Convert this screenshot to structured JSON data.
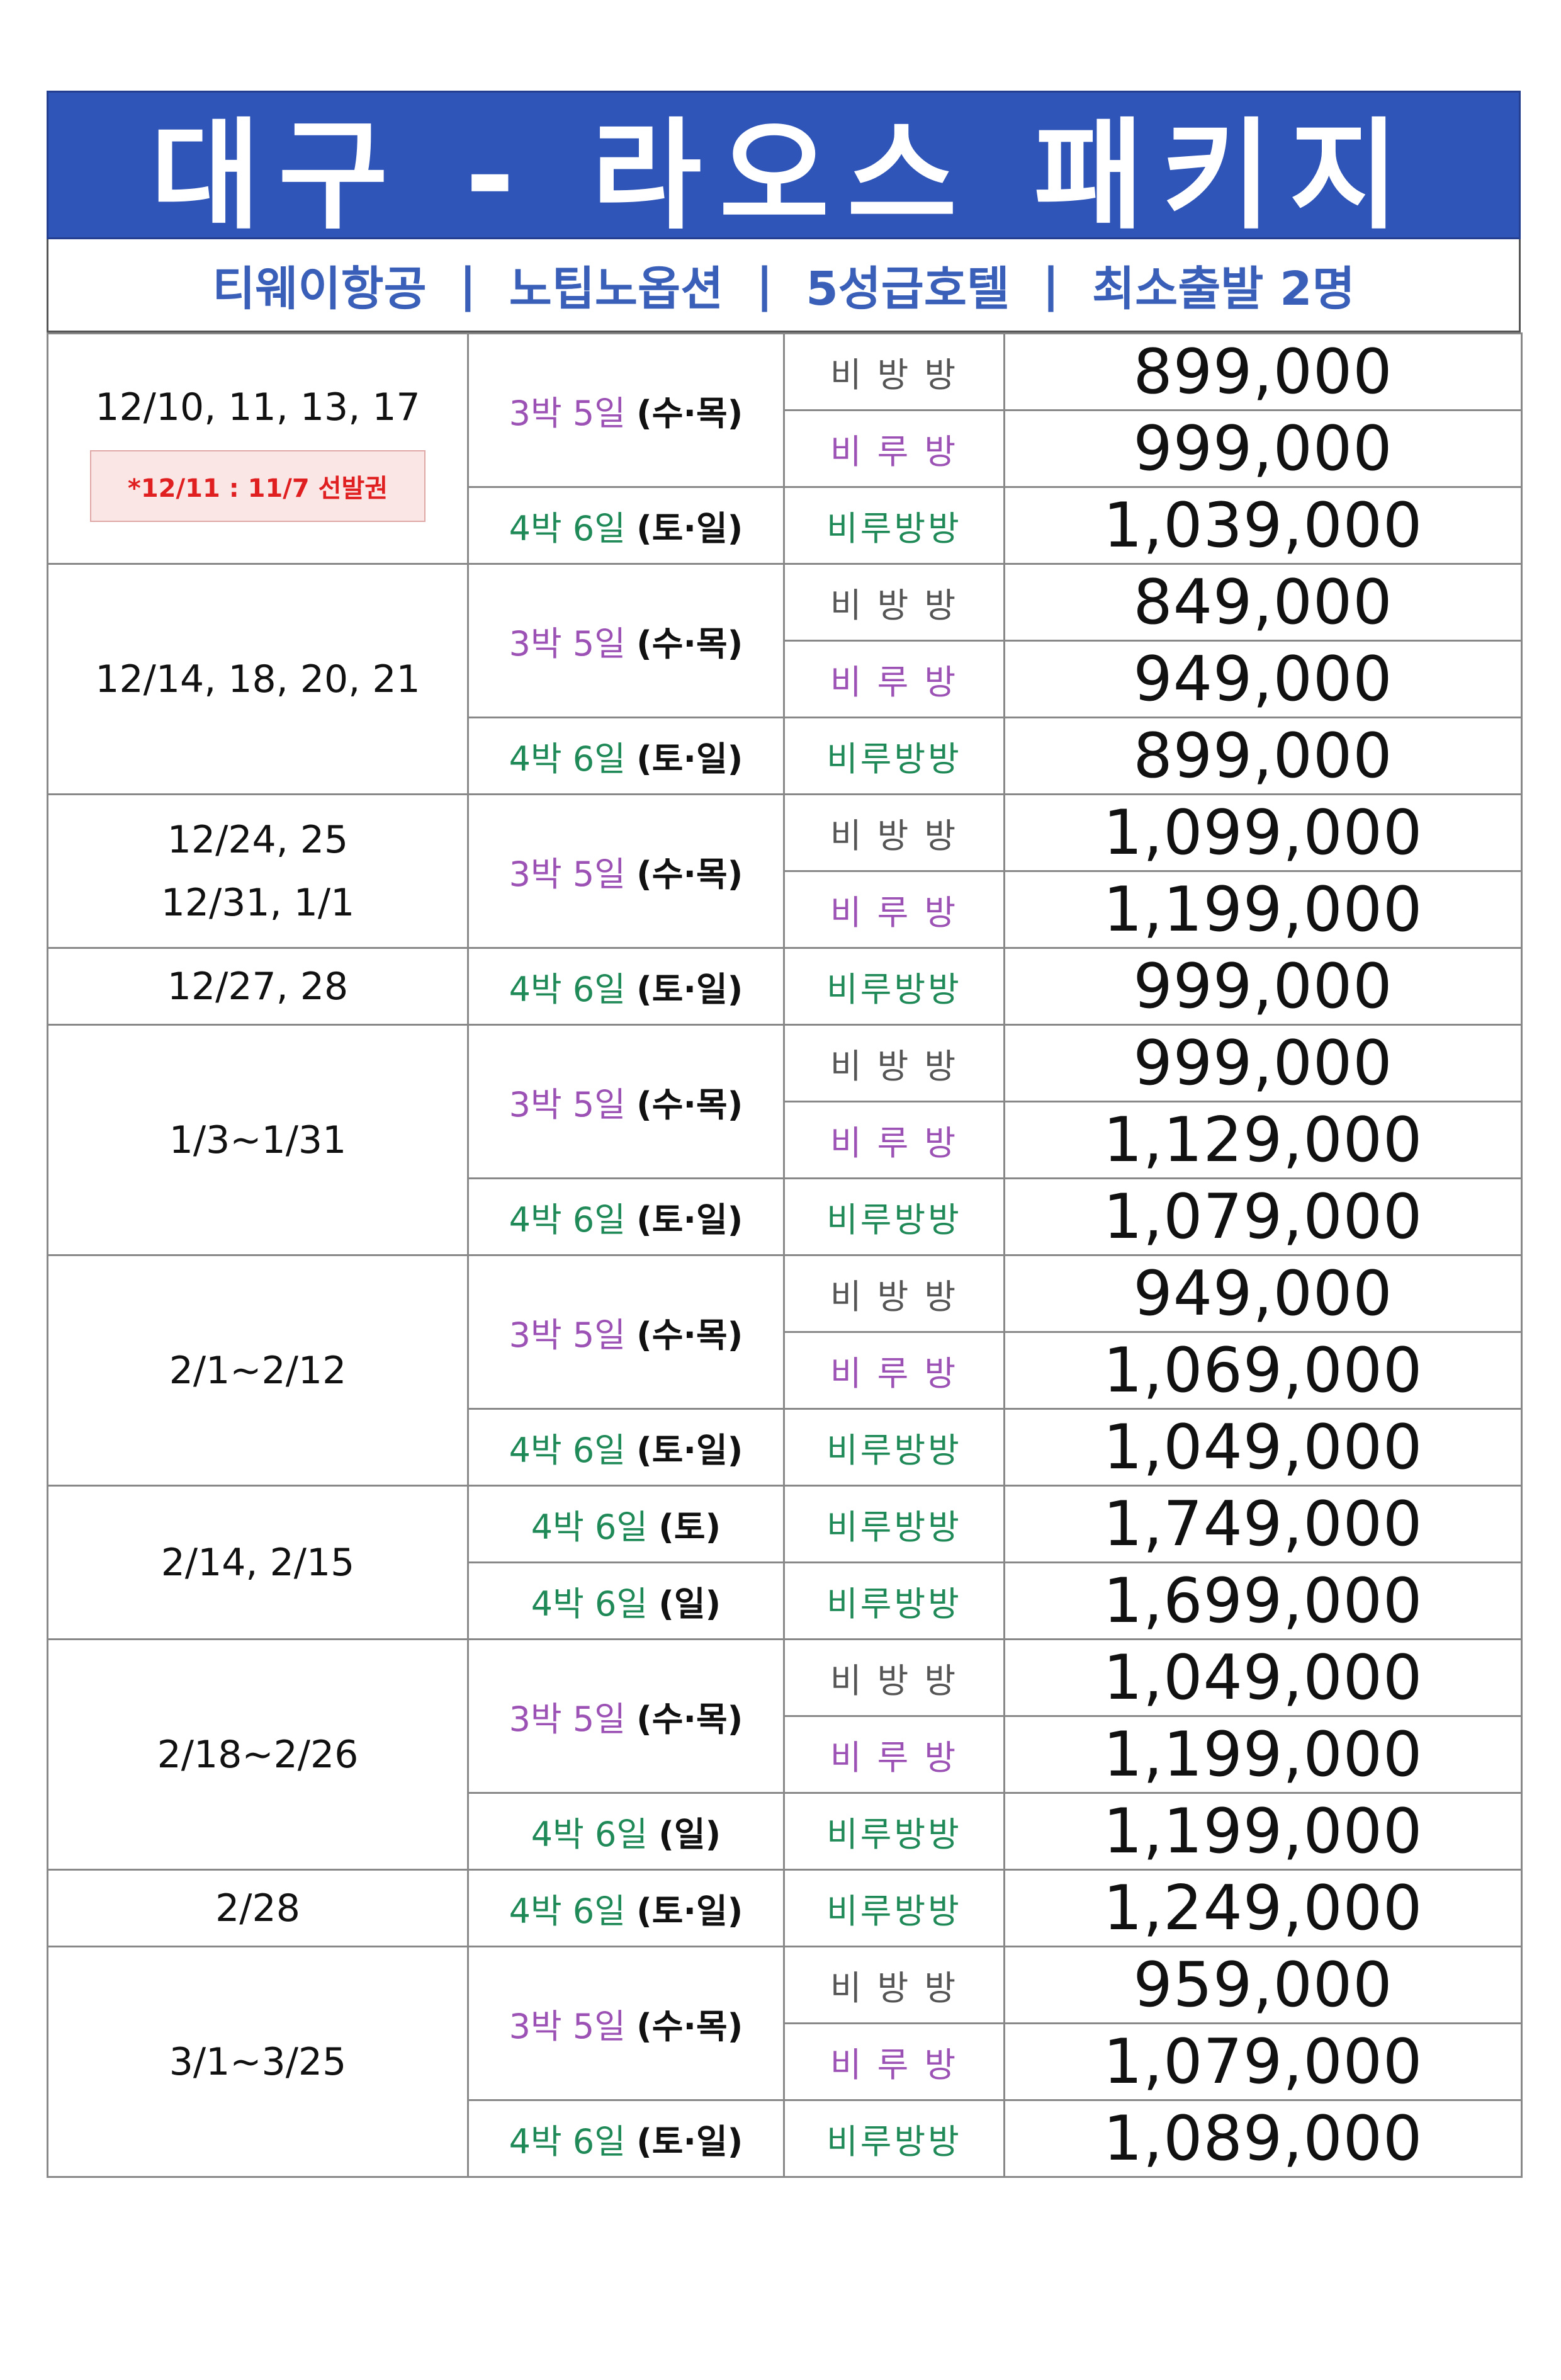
{
  "title": "대구 - 라오스 패키지",
  "subtitle": {
    "items": [
      "티웨이항공",
      "노팁노옵션",
      "5성급호텔",
      "최소출발 2명"
    ],
    "separator": "|"
  },
  "colors": {
    "title_bg": "#2f55b8",
    "subtitle_text": "#3a5fb8",
    "purple": "#9b52b4",
    "green": "#1f8a57",
    "note_red": "#e02020"
  },
  "groups": [
    {
      "date_lines": [
        "12/10, 11, 13, 17"
      ],
      "note": "*12/11 : 11/7 선발권",
      "rows": [
        {
          "duration": "3박 5일",
          "days": "(수·목)",
          "room": "비 방 방",
          "price": "899,000",
          "dur_color": "purple",
          "room_color": "gray",
          "dur_span": 2
        },
        {
          "room": "비 루 방",
          "price": "999,000",
          "room_color": "purple"
        },
        {
          "duration": "4박 6일",
          "days": "(토·일)",
          "room": "비루방방",
          "price": "1,039,000",
          "dur_color": "green",
          "room_color": "green",
          "dur_span": 1
        }
      ]
    },
    {
      "date_lines": [
        "12/14, 18, 20, 21"
      ],
      "rows": [
        {
          "duration": "3박 5일",
          "days": "(수·목)",
          "room": "비 방 방",
          "price": "849,000",
          "dur_color": "purple",
          "room_color": "gray",
          "dur_span": 2
        },
        {
          "room": "비 루 방",
          "price": "949,000",
          "room_color": "purple"
        },
        {
          "duration": "4박 6일",
          "days": "(토·일)",
          "room": "비루방방",
          "price": "899,000",
          "dur_color": "green",
          "room_color": "green",
          "dur_span": 1
        }
      ]
    },
    {
      "date_lines": [
        "12/24, 25",
        "12/31, 1/1"
      ],
      "rows": [
        {
          "duration": "3박 5일",
          "days": "(수·목)",
          "room": "비 방 방",
          "price": "1,099,000",
          "dur_color": "purple",
          "room_color": "gray",
          "dur_span": 2
        },
        {
          "room": "비 루 방",
          "price": "1,199,000",
          "room_color": "purple"
        }
      ]
    },
    {
      "date_lines": [
        "12/27, 28"
      ],
      "rows": [
        {
          "duration": "4박 6일",
          "days": "(토·일)",
          "room": "비루방방",
          "price": "999,000",
          "dur_color": "green",
          "room_color": "green",
          "dur_span": 1
        }
      ]
    },
    {
      "date_lines": [
        "1/3~1/31"
      ],
      "rows": [
        {
          "duration": "3박 5일",
          "days": "(수·목)",
          "room": "비 방 방",
          "price": "999,000",
          "dur_color": "purple",
          "room_color": "gray",
          "dur_span": 2
        },
        {
          "room": "비 루 방",
          "price": "1,129,000",
          "room_color": "purple"
        },
        {
          "duration": "4박 6일",
          "days": "(토·일)",
          "room": "비루방방",
          "price": "1,079,000",
          "dur_color": "green",
          "room_color": "green",
          "dur_span": 1
        }
      ]
    },
    {
      "date_lines": [
        "2/1~2/12"
      ],
      "rows": [
        {
          "duration": "3박 5일",
          "days": "(수·목)",
          "room": "비 방 방",
          "price": "949,000",
          "dur_color": "purple",
          "room_color": "gray",
          "dur_span": 2
        },
        {
          "room": "비 루 방",
          "price": "1,069,000",
          "room_color": "purple"
        },
        {
          "duration": "4박 6일",
          "days": "(토·일)",
          "room": "비루방방",
          "price": "1,049,000",
          "dur_color": "green",
          "room_color": "green",
          "dur_span": 1
        }
      ]
    },
    {
      "date_lines": [
        "2/14, 2/15"
      ],
      "rows": [
        {
          "duration": "4박 6일",
          "days": "(토)",
          "room": "비루방방",
          "price": "1,749,000",
          "dur_color": "green",
          "room_color": "green",
          "dur_span": 1
        },
        {
          "duration": "4박 6일",
          "days": "(일)",
          "room": "비루방방",
          "price": "1,699,000",
          "dur_color": "green",
          "room_color": "green",
          "dur_span": 1
        }
      ]
    },
    {
      "date_lines": [
        "2/18~2/26"
      ],
      "rows": [
        {
          "duration": "3박 5일",
          "days": "(수·목)",
          "room": "비 방 방",
          "price": "1,049,000",
          "dur_color": "purple",
          "room_color": "gray",
          "dur_span": 2
        },
        {
          "room": "비 루 방",
          "price": "1,199,000",
          "room_color": "purple"
        },
        {
          "duration": "4박 6일",
          "days": "(일)",
          "room": "비루방방",
          "price": "1,199,000",
          "dur_color": "green",
          "room_color": "green",
          "dur_span": 1
        }
      ]
    },
    {
      "date_lines": [
        "2/28"
      ],
      "rows": [
        {
          "duration": "4박 6일",
          "days": "(토·일)",
          "room": "비루방방",
          "price": "1,249,000",
          "dur_color": "green",
          "room_color": "green",
          "dur_span": 1
        }
      ]
    },
    {
      "date_lines": [
        "3/1~3/25"
      ],
      "rows": [
        {
          "duration": "3박 5일",
          "days": "(수·목)",
          "room": "비 방 방",
          "price": "959,000",
          "dur_color": "purple",
          "room_color": "gray",
          "dur_span": 2
        },
        {
          "room": "비 루 방",
          "price": "1,079,000",
          "room_color": "purple"
        },
        {
          "duration": "4박 6일",
          "days": "(토·일)",
          "room": "비루방방",
          "price": "1,089,000",
          "dur_color": "green",
          "room_color": "green",
          "dur_span": 1
        }
      ]
    }
  ]
}
